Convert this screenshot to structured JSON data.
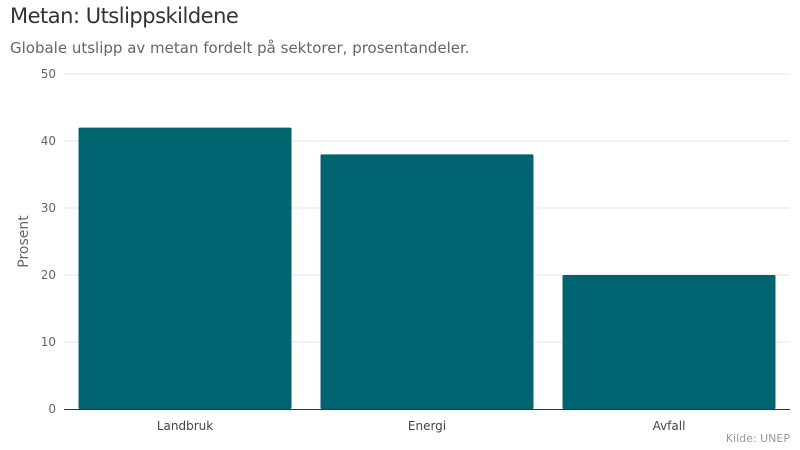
{
  "chart_data": {
    "type": "bar",
    "title": "Metan: Utslippskildene",
    "subtitle": "Globale utslipp av metan fordelt på sektorer, prosentandeler.",
    "categories": [
      "Landbruk",
      "Energi",
      "Avfall"
    ],
    "values": [
      42,
      38,
      20
    ],
    "xlabel": "",
    "ylabel": "Prosent",
    "ylim": [
      0,
      50
    ],
    "yticks": [
      0,
      10,
      20,
      30,
      40,
      50
    ],
    "grid": true,
    "source": "Kilde: UNEP",
    "bar_color": "#006470"
  }
}
